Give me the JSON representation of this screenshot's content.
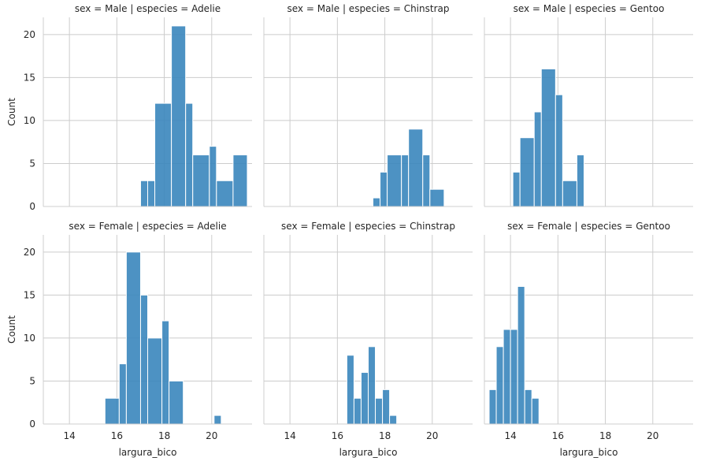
{
  "chart_data": {
    "type": "bar",
    "layout": "facet-grid",
    "xlabel": "largura_bico",
    "ylabel": "Count",
    "xlim": [
      12.9,
      21.7
    ],
    "ylim": [
      0,
      22
    ],
    "xticks": [
      14,
      16,
      18,
      20
    ],
    "yticks": [
      0,
      5,
      10,
      15,
      20
    ],
    "grid": true,
    "bar_color": "#3a86bd",
    "bar_edge_color": "#ffffff",
    "panels": [
      {
        "title": "sex = Male | especies = Adelie",
        "bins": [
          {
            "x0": 17.0,
            "x1": 17.3,
            "count": 3
          },
          {
            "x0": 17.3,
            "x1": 17.6,
            "count": 3
          },
          {
            "x0": 17.6,
            "x1": 18.3,
            "count": 12
          },
          {
            "x0": 18.3,
            "x1": 18.9,
            "count": 21
          },
          {
            "x0": 18.9,
            "x1": 19.2,
            "count": 12
          },
          {
            "x0": 19.2,
            "x1": 19.9,
            "count": 6
          },
          {
            "x0": 19.9,
            "x1": 20.2,
            "count": 7
          },
          {
            "x0": 20.2,
            "x1": 20.9,
            "count": 3
          },
          {
            "x0": 20.9,
            "x1": 21.5,
            "count": 6
          }
        ]
      },
      {
        "title": "sex = Male | especies = Chinstrap",
        "bins": [
          {
            "x0": 17.5,
            "x1": 17.8,
            "count": 1
          },
          {
            "x0": 17.8,
            "x1": 18.1,
            "count": 4
          },
          {
            "x0": 18.1,
            "x1": 18.7,
            "count": 6
          },
          {
            "x0": 18.7,
            "x1": 19.0,
            "count": 6
          },
          {
            "x0": 19.0,
            "x1": 19.6,
            "count": 9
          },
          {
            "x0": 19.6,
            "x1": 19.9,
            "count": 6
          },
          {
            "x0": 19.9,
            "x1": 20.5,
            "count": 2
          }
        ]
      },
      {
        "title": "sex = Male | especies = Gentoo",
        "bins": [
          {
            "x0": 14.1,
            "x1": 14.4,
            "count": 4
          },
          {
            "x0": 14.4,
            "x1": 15.0,
            "count": 8
          },
          {
            "x0": 15.0,
            "x1": 15.3,
            "count": 11
          },
          {
            "x0": 15.3,
            "x1": 15.9,
            "count": 16
          },
          {
            "x0": 15.9,
            "x1": 16.2,
            "count": 13
          },
          {
            "x0": 16.2,
            "x1": 16.8,
            "count": 3
          },
          {
            "x0": 16.8,
            "x1": 17.1,
            "count": 6
          }
        ]
      },
      {
        "title": "sex = Female | especies = Adelie",
        "bins": [
          {
            "x0": 15.5,
            "x1": 16.1,
            "count": 3
          },
          {
            "x0": 16.1,
            "x1": 16.4,
            "count": 7
          },
          {
            "x0": 16.4,
            "x1": 17.0,
            "count": 20
          },
          {
            "x0": 17.0,
            "x1": 17.3,
            "count": 15
          },
          {
            "x0": 17.3,
            "x1": 17.9,
            "count": 10
          },
          {
            "x0": 17.9,
            "x1": 18.2,
            "count": 12
          },
          {
            "x0": 18.2,
            "x1": 18.8,
            "count": 5
          },
          {
            "x0": 20.1,
            "x1": 20.4,
            "count": 1
          }
        ]
      },
      {
        "title": "sex = Female | especies = Chinstrap",
        "bins": [
          {
            "x0": 16.4,
            "x1": 16.7,
            "count": 8
          },
          {
            "x0": 16.7,
            "x1": 17.0,
            "count": 3
          },
          {
            "x0": 17.0,
            "x1": 17.3,
            "count": 6
          },
          {
            "x0": 17.3,
            "x1": 17.6,
            "count": 9
          },
          {
            "x0": 17.6,
            "x1": 17.9,
            "count": 3
          },
          {
            "x0": 17.9,
            "x1": 18.2,
            "count": 4
          },
          {
            "x0": 18.2,
            "x1": 18.5,
            "count": 1
          }
        ]
      },
      {
        "title": "sex = Female | especies = Gentoo",
        "bins": [
          {
            "x0": 13.1,
            "x1": 13.4,
            "count": 4
          },
          {
            "x0": 13.4,
            "x1": 13.7,
            "count": 9
          },
          {
            "x0": 13.7,
            "x1": 14.0,
            "count": 11
          },
          {
            "x0": 14.0,
            "x1": 14.3,
            "count": 11
          },
          {
            "x0": 14.3,
            "x1": 14.6,
            "count": 16
          },
          {
            "x0": 14.6,
            "x1": 14.9,
            "count": 4
          },
          {
            "x0": 14.9,
            "x1": 15.2,
            "count": 3
          }
        ]
      }
    ]
  }
}
